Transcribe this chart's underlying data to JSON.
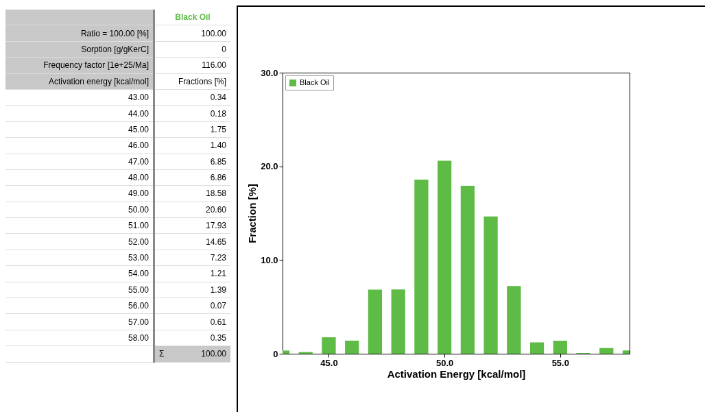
{
  "chart_data": {
    "type": "bar",
    "xlabel": "Activation Energy [kcal/mol]",
    "ylabel": "Fraction [%]",
    "x": [
      43,
      44,
      45,
      46,
      47,
      48,
      49,
      50,
      51,
      52,
      53,
      54,
      55,
      56,
      57,
      58
    ],
    "series": [
      {
        "name": "Black Oil",
        "color": "#5dbb46",
        "values": [
          0.34,
          0.18,
          1.75,
          1.4,
          6.85,
          6.86,
          18.58,
          20.6,
          17.93,
          14.65,
          7.23,
          1.21,
          1.39,
          0.07,
          0.61,
          0.35
        ]
      }
    ],
    "xlim": [
      43,
      58
    ],
    "xticks": [
      {
        "value": 45,
        "label": "45.0"
      },
      {
        "value": 50,
        "label": "50.0"
      },
      {
        "value": 55,
        "label": "55.0"
      }
    ],
    "ylim": [
      0,
      30
    ],
    "yticks": [
      0,
      {
        "value": 10,
        "label": "10.0"
      },
      {
        "value": 20,
        "label": "20.0"
      },
      {
        "value": 30,
        "label": "30.0"
      }
    ],
    "legend": "top left",
    "grid": false,
    "annotations": [
      "Ratio = 100.00 [%]",
      "100.00",
      "Sorption [g/gKerC]",
      "0",
      "Frequency factor [1e+25/Ma]",
      "116.00",
      "Activation energy [kcal/mol]",
      "Fractions [%]",
      "43.00",
      "0.34",
      "44.00",
      "0.18",
      "45.00",
      "1.75",
      "46.00",
      "1.40",
      "47.00",
      "6.85",
      "48.00",
      "6.86",
      "49.00",
      "18.58",
      "50.00",
      "20.60",
      "51.00",
      "17.93",
      "52.00",
      "14.65",
      "53.00",
      "7.23",
      "54.00",
      "1.21",
      "55.00",
      "1.39",
      "56.00",
      "0.07",
      "57.00",
      "0.61",
      "58.00",
      "0.35",
      "Σ",
      "100.00"
    ]
  }
}
